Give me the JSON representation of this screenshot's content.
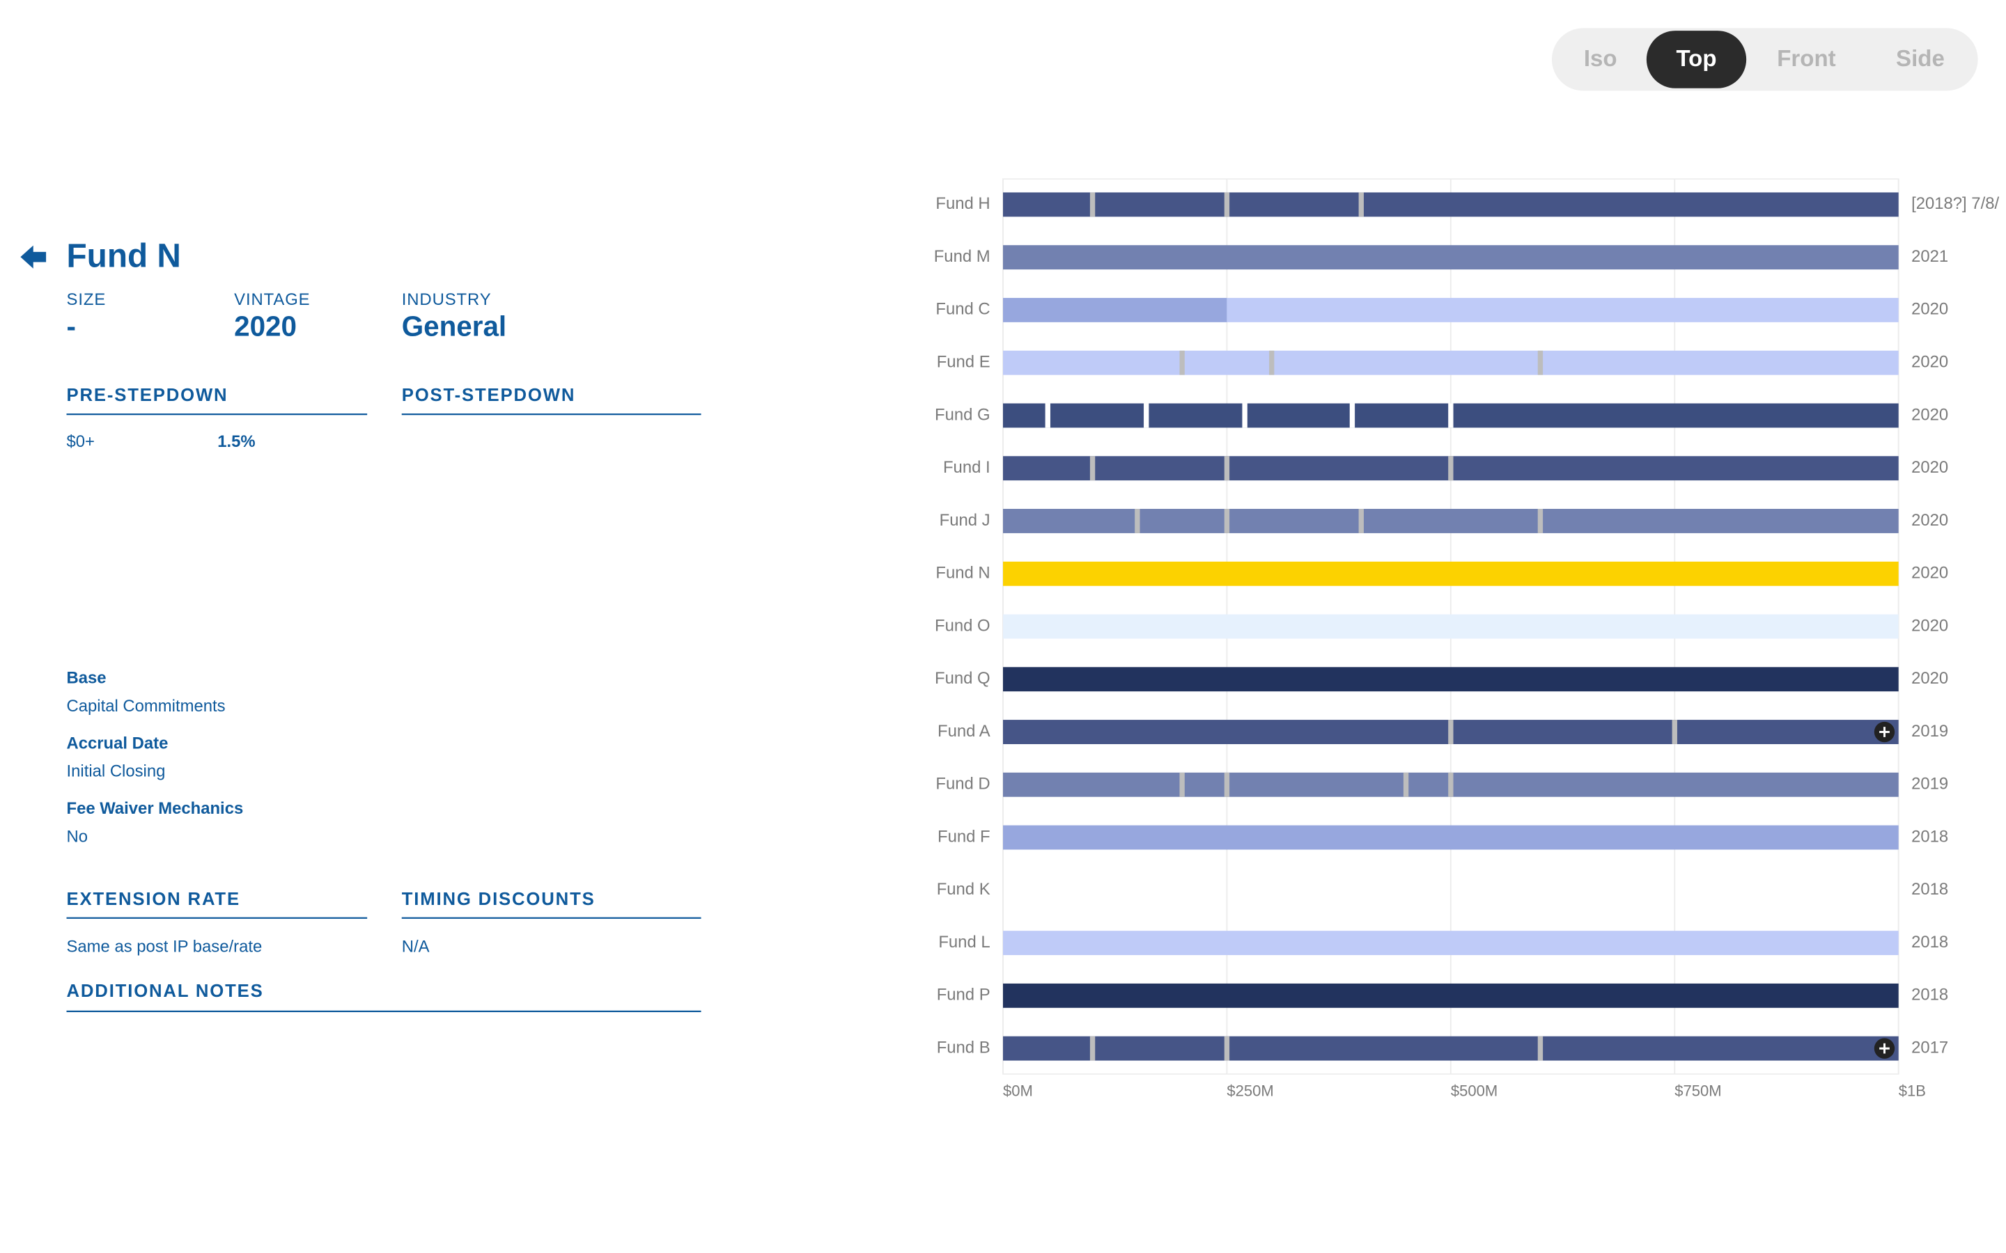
{
  "view_tabs": {
    "options": [
      "Iso",
      "Top",
      "Front",
      "Side"
    ],
    "active": "Top"
  },
  "detail": {
    "title": "Fund N",
    "size_label": "SIZE",
    "size_value": "-",
    "vintage_label": "VINTAGE",
    "vintage_value": "2020",
    "industry_label": "INDUSTRY",
    "industry_value": "General",
    "pre_stepdown_heading": "PRE-STEPDOWN",
    "post_stepdown_heading": "POST-STEPDOWN",
    "pre_stepdown_rows": [
      [
        "$0+",
        "1.5%"
      ]
    ],
    "fields": [
      {
        "label": "Base",
        "value": "Capital Commitments"
      },
      {
        "label": "Accrual Date",
        "value": "Initial Closing"
      },
      {
        "label": "Fee Waiver Mechanics",
        "value": "No"
      }
    ],
    "extension_rate_heading": "EXTENSION RATE",
    "extension_rate_value": "Same as post IP base/rate",
    "timing_discounts_heading": "TIMING DISCOUNTS",
    "timing_discounts_value": "N/A",
    "additional_notes_heading": "ADDITIONAL NOTES"
  },
  "chart_data": {
    "type": "segmented-bar",
    "xlim": [
      0,
      1000
    ],
    "xticks": [
      {
        "value": 0,
        "label": "$0M"
      },
      {
        "value": 250,
        "label": "$250M"
      },
      {
        "value": 500,
        "label": "$500M"
      },
      {
        "value": 750,
        "label": "$750M"
      },
      {
        "value": 1000,
        "label": "$1B"
      }
    ],
    "grid": true,
    "separator_color": "#bdbdbd",
    "rows": [
      {
        "name": "Fund H",
        "year": "[2018?] 7/8/",
        "segments": [
          100,
          150,
          150,
          600
        ],
        "colors": [
          "#465587",
          "#465587",
          "#465587",
          "#465587"
        ]
      },
      {
        "name": "Fund M",
        "year": "2021",
        "segments": [
          1000
        ],
        "colors": [
          "#7281b0"
        ]
      },
      {
        "name": "Fund C",
        "year": "2020",
        "segments": [
          250,
          750
        ],
        "colors": [
          "#97a7de",
          "#bfcbf8"
        ],
        "separators": false
      },
      {
        "name": "Fund E",
        "year": "2020",
        "segments": [
          200,
          100,
          300,
          400
        ],
        "colors": [
          "#bfcbf8",
          "#bfcbf8",
          "#bfcbf8",
          "#bfcbf8"
        ]
      },
      {
        "name": "Fund G",
        "year": "2020",
        "segments": [
          50,
          110,
          110,
          120,
          110,
          500
        ],
        "colors": [
          "#3c4e7f",
          "#3c4e7f",
          "#3c4e7f",
          "#3c4e7f",
          "#3c4e7f",
          "#3c4e7f"
        ],
        "gap_color": "#ffffff"
      },
      {
        "name": "Fund I",
        "year": "2020",
        "segments": [
          100,
          150,
          250,
          500
        ],
        "colors": [
          "#465587",
          "#465587",
          "#465587",
          "#465587"
        ]
      },
      {
        "name": "Fund J",
        "year": "2020",
        "segments": [
          150,
          100,
          150,
          200,
          400
        ],
        "colors": [
          "#7281b0",
          "#7281b0",
          "#7281b0",
          "#7281b0",
          "#7281b0"
        ]
      },
      {
        "name": "Fund N",
        "year": "2020",
        "segments": [
          1000
        ],
        "colors": [
          "#fcd200"
        ]
      },
      {
        "name": "Fund O",
        "year": "2020",
        "segments": [
          1000
        ],
        "colors": [
          "#e6f1fd"
        ]
      },
      {
        "name": "Fund Q",
        "year": "2020",
        "segments": [
          1000
        ],
        "colors": [
          "#22335e"
        ]
      },
      {
        "name": "Fund A",
        "year": "2019",
        "segments": [
          500,
          250,
          250
        ],
        "colors": [
          "#465587",
          "#465587",
          "#465587"
        ],
        "expandable": true
      },
      {
        "name": "Fund D",
        "year": "2019",
        "segments": [
          200,
          50,
          200,
          50,
          500
        ],
        "colors": [
          "#7281b0",
          "#7281b0",
          "#7281b0",
          "#7281b0",
          "#7281b0"
        ]
      },
      {
        "name": "Fund F",
        "year": "2018",
        "segments": [
          1000
        ],
        "colors": [
          "#97a7de"
        ]
      },
      {
        "name": "Fund K",
        "year": "2018",
        "segments": [],
        "colors": []
      },
      {
        "name": "Fund L",
        "year": "2018",
        "segments": [
          1000
        ],
        "colors": [
          "#bfcbf8"
        ]
      },
      {
        "name": "Fund P",
        "year": "2018",
        "segments": [
          1000
        ],
        "colors": [
          "#22335e"
        ]
      },
      {
        "name": "Fund B",
        "year": "2017",
        "segments": [
          100,
          150,
          350,
          400
        ],
        "colors": [
          "#465587",
          "#465587",
          "#465587",
          "#465587"
        ],
        "expandable": true
      }
    ]
  }
}
